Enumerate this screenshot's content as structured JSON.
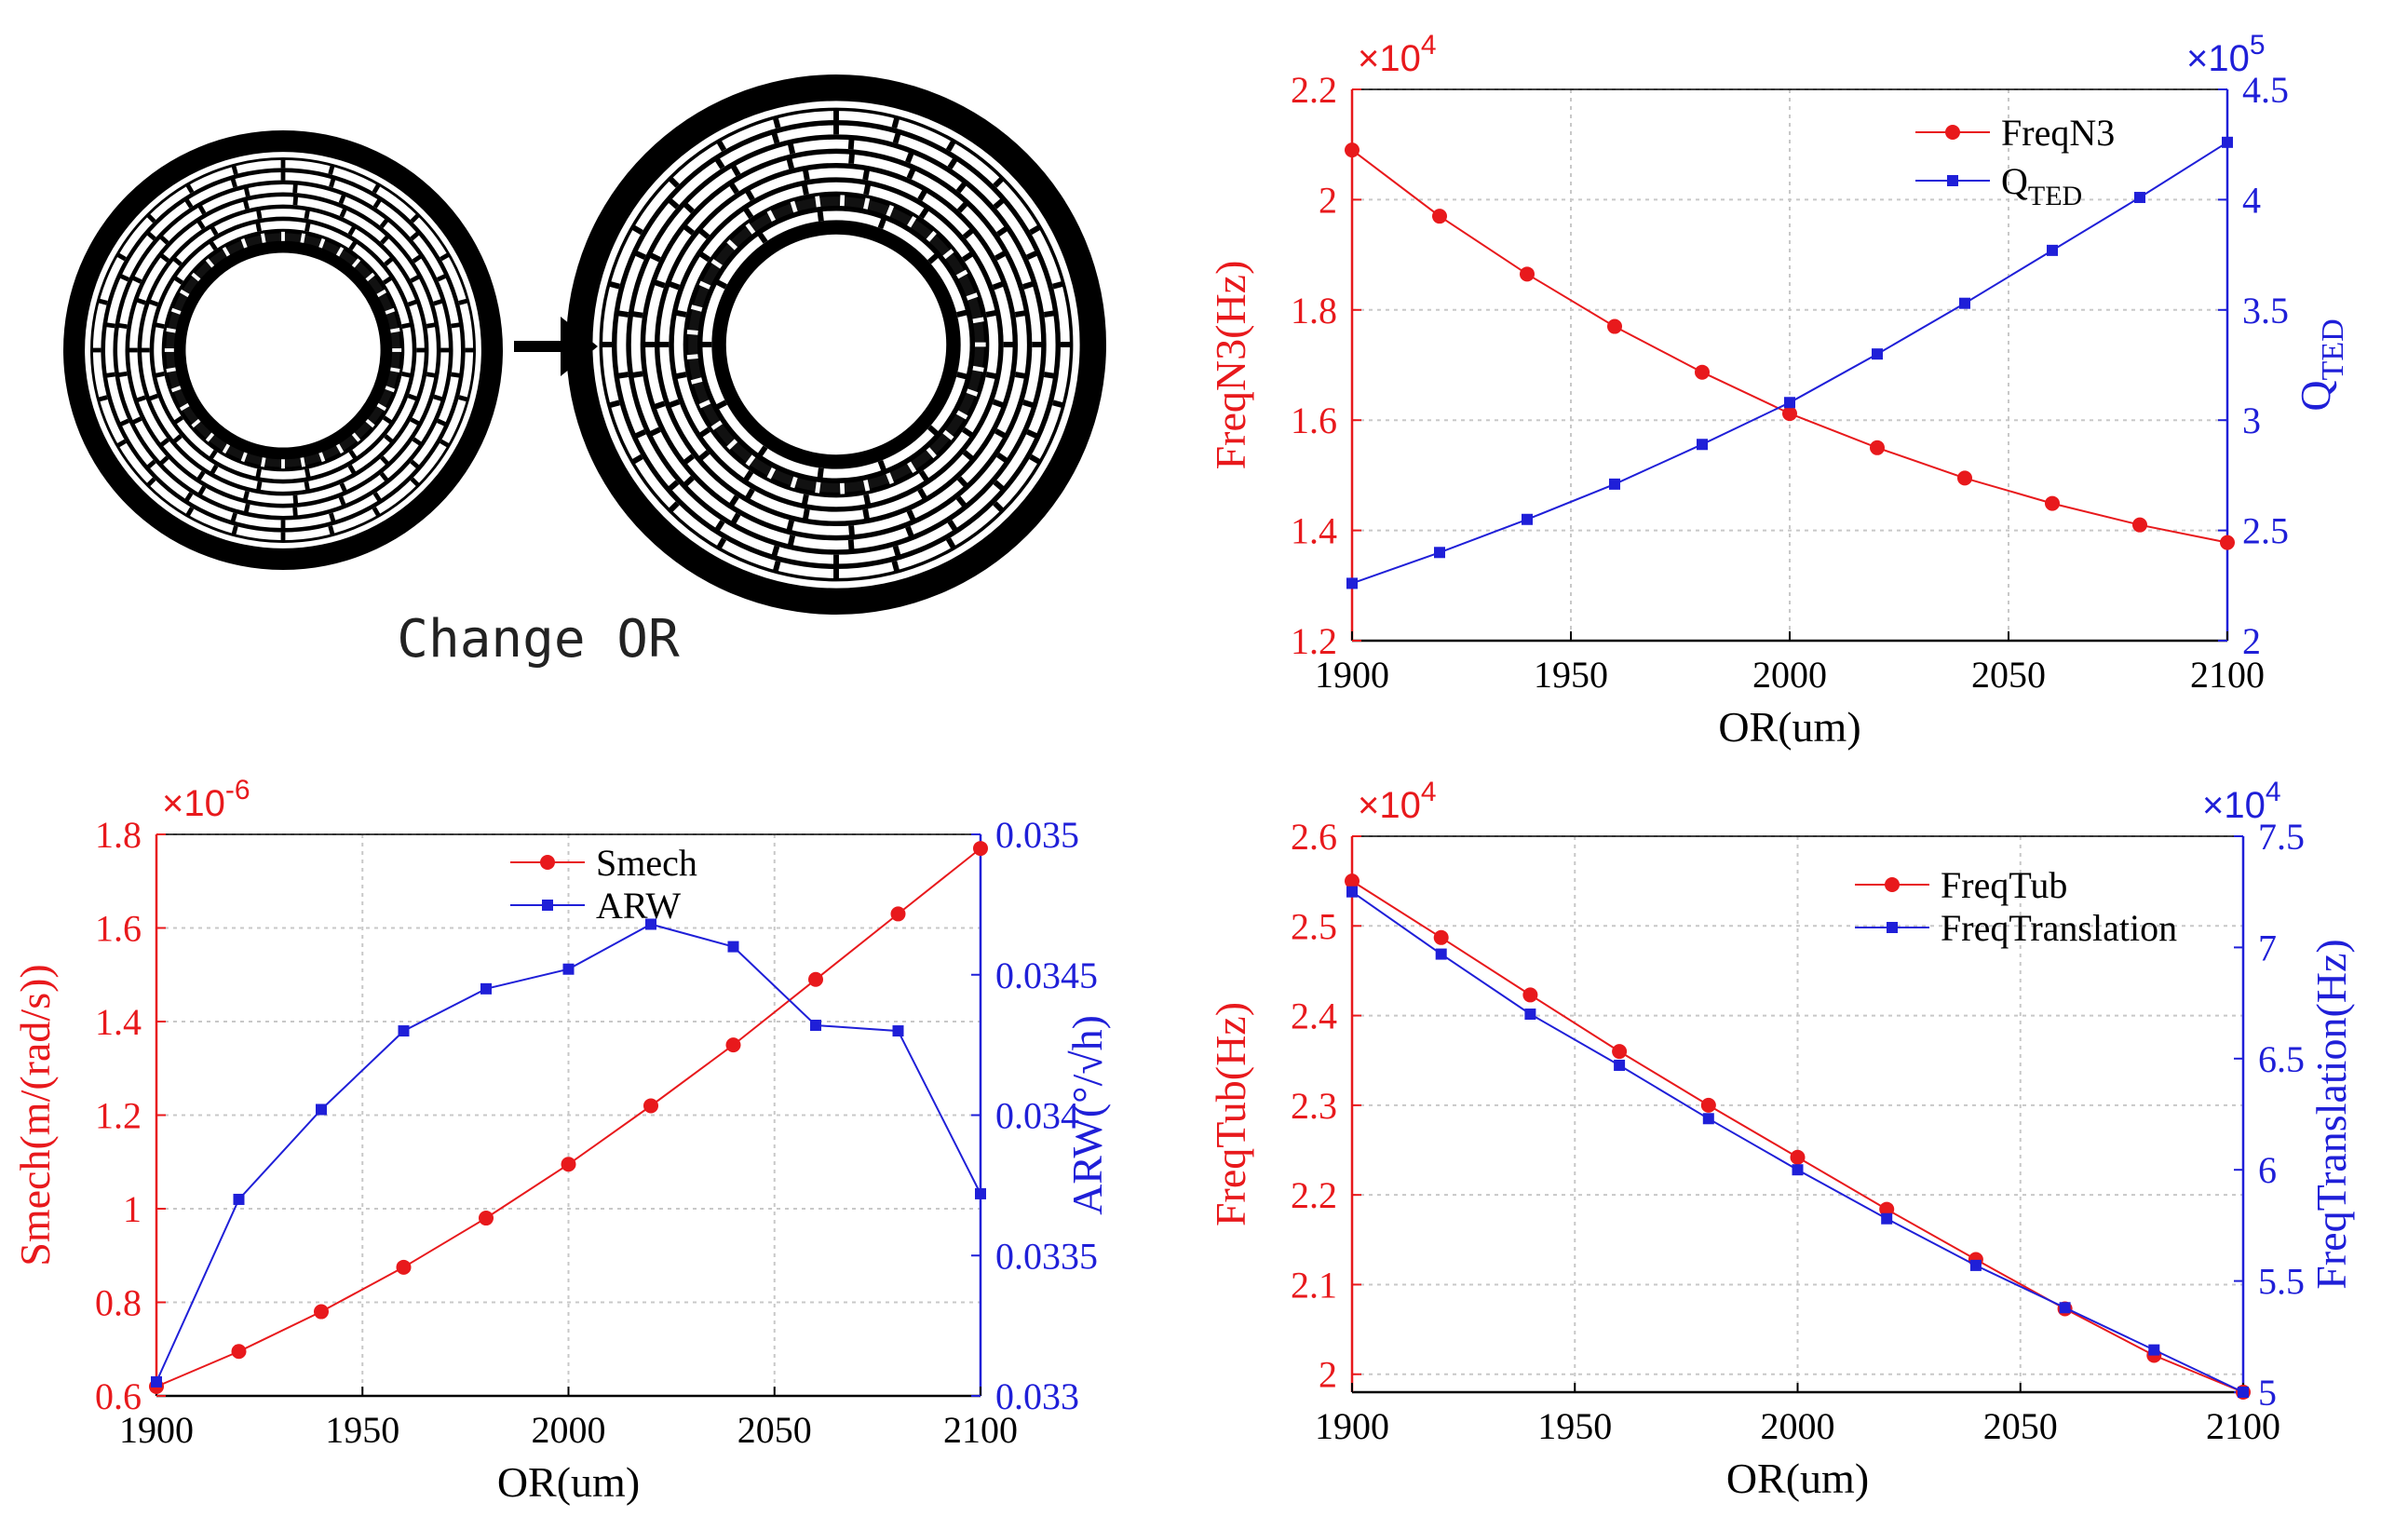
{
  "diagram": {
    "caption": "Change OR",
    "description_label": "Change OR"
  },
  "colors": {
    "red": "#e8191c",
    "blue": "#1f1fd8",
    "black": "#000000",
    "grid": "#c8c8c8"
  },
  "chart_data": [
    {
      "type": "line",
      "id": "top-right",
      "xlabel": "OR(um)",
      "x": [
        1900,
        1920,
        1940,
        1960,
        1980,
        2000,
        2020,
        2040,
        2060,
        2080,
        2100
      ],
      "xlim": [
        1900,
        2100
      ],
      "xticks": [
        "1900",
        "1950",
        "2000",
        "2050",
        "2100"
      ],
      "left_axis": {
        "label": "FreqN3(Hz)",
        "ylim": [
          1.2,
          2.2
        ],
        "ticks": [
          "1.2",
          "1.4",
          "1.6",
          "1.8",
          "2",
          "2.2"
        ],
        "multiplier": "×10",
        "exponent": "4"
      },
      "right_axis": {
        "label": "Q",
        "label_sub": "TED",
        "ylim": [
          2,
          4.5
        ],
        "ticks": [
          "2",
          "2.5",
          "3",
          "3.5",
          "4",
          "4.5"
        ],
        "multiplier": "×10",
        "exponent": "5"
      },
      "series": [
        {
          "name": "FreqN3",
          "axis": "left",
          "marker": "circle",
          "color": "#e8191c",
          "values": [
            2.09,
            1.97,
            1.865,
            1.77,
            1.687,
            1.612,
            1.55,
            1.495,
            1.449,
            1.41,
            1.378
          ]
        },
        {
          "name": "Q",
          "name_sub": "TED",
          "axis": "right",
          "marker": "square",
          "color": "#1f1fd8",
          "values": [
            2.26,
            2.4,
            2.55,
            2.71,
            2.89,
            3.08,
            3.3,
            3.53,
            3.77,
            4.01,
            4.26
          ]
        }
      ],
      "legend": "top-right"
    },
    {
      "type": "line",
      "id": "bottom-left",
      "xlabel": "OR(um)",
      "x": [
        1900,
        1920,
        1940,
        1960,
        1980,
        2000,
        2020,
        2040,
        2060,
        2080,
        2100
      ],
      "xlim": [
        1900,
        2100
      ],
      "xticks": [
        "1900",
        "1950",
        "2000",
        "2050",
        "2100"
      ],
      "left_axis": {
        "label": "Smech(m/(rad/s))",
        "ylim": [
          0.6,
          1.8
        ],
        "ticks": [
          "0.6",
          "0.8",
          "1",
          "1.2",
          "1.4",
          "1.6",
          "1.8"
        ],
        "multiplier": "×10",
        "exponent": "-6"
      },
      "right_axis": {
        "label": "ARW(°/√h)",
        "ylim": [
          0.033,
          0.035
        ],
        "ticks": [
          "0.033",
          "0.0335",
          "0.034",
          "0.0345",
          "0.035"
        ]
      },
      "series": [
        {
          "name": "Smech",
          "axis": "left",
          "marker": "circle",
          "color": "#e8191c",
          "values": [
            0.62,
            0.695,
            0.78,
            0.875,
            0.98,
            1.095,
            1.22,
            1.35,
            1.49,
            1.63,
            1.77
          ]
        },
        {
          "name": "ARW",
          "axis": "right",
          "marker": "square",
          "color": "#1f1fd8",
          "values": [
            0.03305,
            0.0337,
            0.03402,
            0.0343,
            0.03445,
            0.03452,
            0.03468,
            0.0346,
            0.03432,
            0.0343,
            0.03372
          ]
        }
      ],
      "legend": "top-right"
    },
    {
      "type": "line",
      "id": "bottom-right",
      "xlabel": "OR(um)",
      "x": [
        1900,
        1920,
        1940,
        1960,
        1980,
        2000,
        2020,
        2040,
        2060,
        2080,
        2100
      ],
      "xlim": [
        1900,
        2100
      ],
      "xticks": [
        "1900",
        "1950",
        "2000",
        "2050",
        "2100"
      ],
      "left_axis": {
        "label": "FreqTub(Hz)",
        "ylim": [
          1.98,
          2.6
        ],
        "ticks": [
          "2",
          "2.1",
          "2.2",
          "2.3",
          "2.4",
          "2.5",
          "2.6"
        ],
        "multiplier": "×10",
        "exponent": "4"
      },
      "right_axis": {
        "label": "FreqTranslation(Hz)",
        "ylim": [
          5,
          7.5
        ],
        "ticks": [
          "5",
          "5.5",
          "6",
          "6.5",
          "7",
          "7.5"
        ],
        "multiplier": "×10",
        "exponent": "4"
      },
      "series": [
        {
          "name": "FreqTub",
          "axis": "left",
          "marker": "circle",
          "color": "#e8191c",
          "values": [
            2.55,
            2.487,
            2.423,
            2.36,
            2.3,
            2.242,
            2.184,
            2.128,
            2.073,
            2.021,
            1.98
          ]
        },
        {
          "name": "FreqTranslation",
          "axis": "right",
          "marker": "square",
          "color": "#1f1fd8",
          "values": [
            7.25,
            6.97,
            6.7,
            6.47,
            6.23,
            6.0,
            5.78,
            5.57,
            5.38,
            5.19,
            5.0
          ]
        }
      ],
      "legend": "top-right"
    }
  ]
}
